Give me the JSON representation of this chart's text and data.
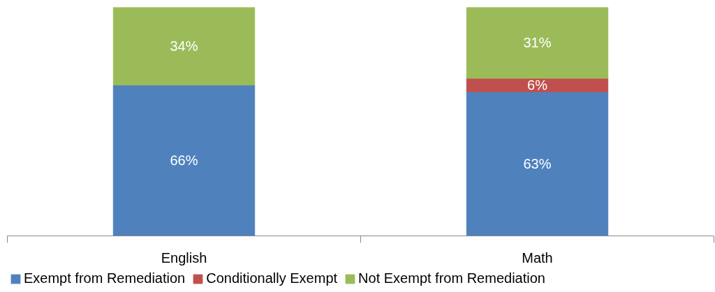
{
  "chart_data": {
    "type": "bar",
    "stacked": true,
    "categories": [
      "English",
      "Math"
    ],
    "ylim": [
      0,
      100
    ],
    "legend": "bottom",
    "grid": false,
    "series": [
      {
        "name": "Exempt from Remediation",
        "color": "#4f81bd",
        "values": [
          66,
          63
        ],
        "value_labels": [
          "66%",
          "63%"
        ]
      },
      {
        "name": "Conditionally Exempt",
        "color": "#c0504d",
        "values": [
          null,
          6
        ],
        "value_labels": [
          null,
          "6%"
        ]
      },
      {
        "name": "Not Exempt from Remediation",
        "color": "#9bbb59",
        "values": [
          34,
          31
        ],
        "value_labels": [
          "34%",
          "31%"
        ]
      }
    ]
  }
}
